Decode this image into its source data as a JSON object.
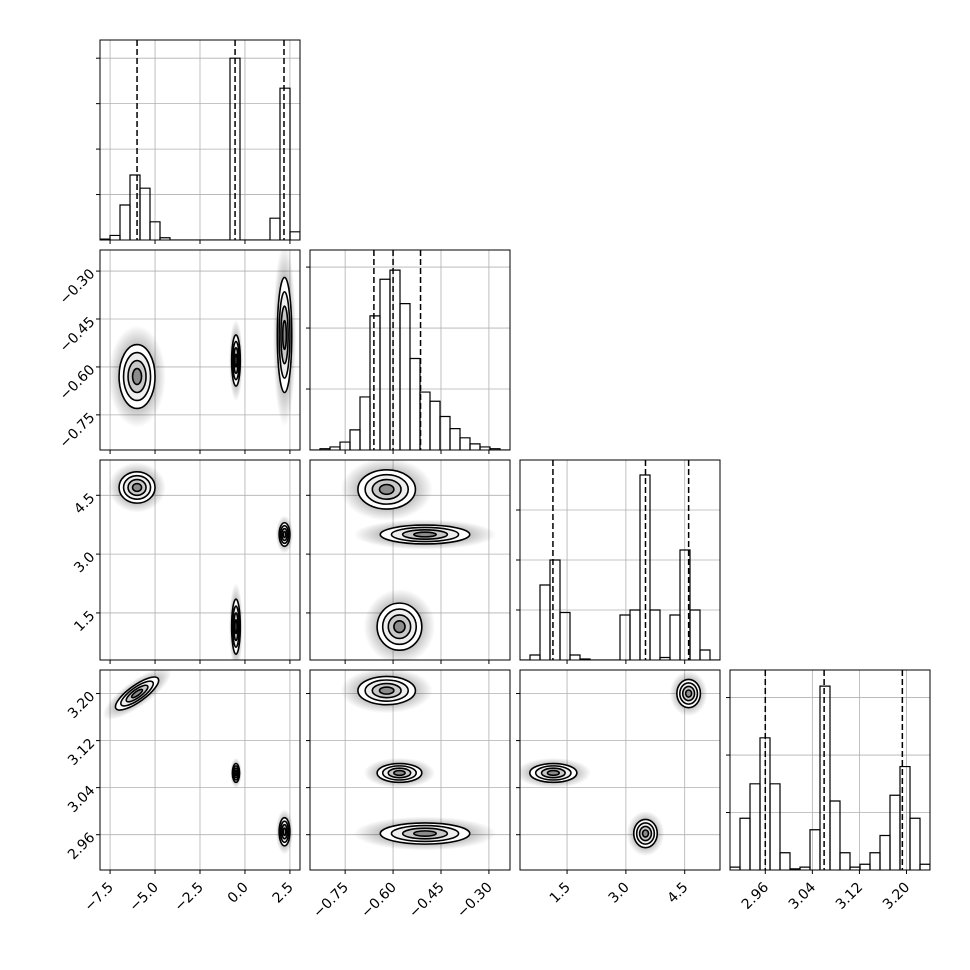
{
  "chart_data": {
    "type": "corner",
    "parameters": [
      {
        "lim": [
          -8.06,
          3.06
        ],
        "ticks": [
          {
            "value": -7.5,
            "label": "−7.5"
          },
          {
            "value": -5.0,
            "label": "−5.0"
          },
          {
            "value": -2.5,
            "label": "−2.5"
          },
          {
            "value": 0,
            "label": "0.0"
          },
          {
            "value": 2.5,
            "label": "2.5"
          }
        ],
        "quantiles": [
          -6.0,
          -0.55,
          2.17
        ],
        "bins": [
          -8.06,
          -7.504,
          -6.948,
          -6.392,
          -5.836,
          -5.28,
          -4.724,
          -4.168,
          -3.612,
          -3.056,
          -2.5,
          -1.944,
          -1.388,
          -0.832,
          -0.276,
          0.28,
          0.836,
          1.392,
          1.948,
          2.504,
          3.06
        ],
        "counts": [
          0.02,
          0.1,
          0.77,
          1.43,
          1.14,
          0.4,
          0.05,
          0,
          0,
          0,
          0,
          0,
          0,
          4.0,
          0,
          0,
          0,
          0.48,
          3.34,
          0.18
        ],
        "hist_ylim": [
          0,
          4.4
        ],
        "hist_yticks": [
          1,
          2,
          3,
          4
        ]
      },
      {
        "lim": [
          -0.86,
          -0.234
        ],
        "ticks": [
          {
            "value": -0.75,
            "label": "−0.75"
          },
          {
            "value": -0.6,
            "label": "−0.60"
          },
          {
            "value": -0.45,
            "label": "−0.45"
          },
          {
            "value": -0.3,
            "label": "−0.30"
          }
        ],
        "quantiles": [
          -0.66,
          -0.6,
          -0.514
        ],
        "bins": [
          -0.86,
          -0.8287,
          -0.7974,
          -0.7661,
          -0.7348,
          -0.7035,
          -0.6722,
          -0.6409,
          -0.6096,
          -0.5783,
          -0.547,
          -0.5157,
          -0.4844,
          -0.4531,
          -0.4218,
          -0.3905,
          -0.3592,
          -0.3279,
          -0.2966,
          -0.2653,
          -0.234
        ],
        "counts": [
          0,
          0.02,
          0.05,
          0.13,
          0.33,
          0.87,
          2.2,
          2.8,
          2.95,
          2.4,
          1.5,
          0.95,
          0.8,
          0.55,
          0.35,
          0.2,
          0.1,
          0.05,
          0.02,
          0
        ],
        "hist_ylim": [
          0,
          3.28
        ],
        "hist_yticks": [
          1,
          2,
          3
        ]
      },
      {
        "lim": [
          0.3,
          5.4
        ],
        "ticks": [
          1.5,
          {
            "value": 3.0,
            "label": "3.0"
          },
          4.5
        ],
        "quantiles": [
          1.14,
          3.5,
          4.6
        ],
        "bins": [
          0.3,
          0.555,
          0.81,
          1.065,
          1.32,
          1.575,
          1.83,
          2.085,
          2.34,
          2.595,
          2.85,
          3.105,
          3.36,
          3.615,
          3.87,
          4.125,
          4.38,
          4.635,
          4.89,
          5.145,
          5.4
        ],
        "counts": [
          0,
          0.1,
          1.5,
          2.0,
          0.95,
          0.1,
          0.02,
          0,
          0,
          0,
          0.9,
          1.0,
          3.7,
          1.0,
          0.05,
          0.9,
          2.2,
          1.0,
          0.2,
          0
        ],
        "hist_ylim": [
          0,
          4
        ],
        "hist_yticks": [
          1,
          2,
          3
        ]
      },
      {
        "lim": [
          2.9,
          3.24
        ],
        "ticks": [
          2.96,
          3.04,
          3.12,
          {
            "value": 3.2,
            "label": "3.20"
          }
        ],
        "quantiles": [
          2.96,
          3.06,
          3.193
        ],
        "bins": [
          2.9,
          2.917,
          2.934,
          2.951,
          2.968,
          2.985,
          3.002,
          3.019,
          3.036,
          3.053,
          3.07,
          3.087,
          3.104,
          3.121,
          3.138,
          3.155,
          3.172,
          3.189,
          3.206,
          3.223,
          3.24
        ],
        "counts": [
          0.05,
          0.9,
          1.5,
          2.3,
          1.5,
          0.3,
          0.02,
          0.05,
          0.7,
          3.2,
          1.2,
          0.3,
          0.05,
          0.1,
          0.3,
          0.6,
          1.3,
          1.8,
          0.9,
          0.1
        ],
        "hist_ylim": [
          0,
          3.48
        ],
        "hist_yticks": [
          1,
          2,
          3
        ]
      }
    ],
    "contour_levels": [
      2,
      1.5,
      1,
      0.5
    ],
    "panels": [
      {
        "x_param": 0,
        "y_param": 1,
        "clusters": [
          {
            "x": -6.0,
            "y": -0.63,
            "sx": 0.5,
            "sy": 0.05,
            "rho": 0
          },
          {
            "x": -0.5,
            "y": -0.58,
            "sx": 0.12,
            "sy": 0.04,
            "rho": 0
          },
          {
            "x": 2.2,
            "y": -0.5,
            "sx": 0.2,
            "sy": 0.09,
            "rho": 0
          }
        ]
      },
      {
        "x_param": 0,
        "y_param": 2,
        "clusters": [
          {
            "x": -6.0,
            "y": 4.7,
            "sx": 0.5,
            "sy": 0.2,
            "rho": 0
          },
          {
            "x": 2.2,
            "y": 3.5,
            "sx": 0.15,
            "sy": 0.15,
            "rho": 0
          },
          {
            "x": -0.5,
            "y": 1.15,
            "sx": 0.12,
            "sy": 0.35,
            "rho": 0
          }
        ]
      },
      {
        "x_param": 1,
        "y_param": 2,
        "clusters": [
          {
            "x": -0.62,
            "y": 4.65,
            "sx": 0.045,
            "sy": 0.25,
            "rho": 0
          },
          {
            "x": -0.5,
            "y": 3.5,
            "sx": 0.07,
            "sy": 0.12,
            "rho": 0
          },
          {
            "x": -0.58,
            "y": 1.15,
            "sx": 0.035,
            "sy": 0.3,
            "rho": 0
          }
        ]
      },
      {
        "x_param": 0,
        "y_param": 3,
        "clusters": [
          {
            "x": -6.0,
            "y": 3.2,
            "sx": 0.6,
            "sy": 0.014,
            "rho": 0.8
          },
          {
            "x": -0.5,
            "y": 3.065,
            "sx": 0.1,
            "sy": 0.008,
            "rho": 0
          },
          {
            "x": 2.2,
            "y": 2.965,
            "sx": 0.15,
            "sy": 0.012,
            "rho": 0
          }
        ]
      },
      {
        "x_param": 1,
        "y_param": 3,
        "clusters": [
          {
            "x": -0.62,
            "y": 3.205,
            "sx": 0.045,
            "sy": 0.012,
            "rho": 0
          },
          {
            "x": -0.58,
            "y": 3.065,
            "sx": 0.035,
            "sy": 0.008,
            "rho": 0
          },
          {
            "x": -0.5,
            "y": 2.962,
            "sx": 0.07,
            "sy": 0.009,
            "rho": 0
          }
        ]
      },
      {
        "x_param": 2,
        "y_param": 3,
        "clusters": [
          {
            "x": 4.6,
            "y": 3.2,
            "sx": 0.15,
            "sy": 0.012,
            "rho": 0
          },
          {
            "x": 1.15,
            "y": 3.065,
            "sx": 0.3,
            "sy": 0.008,
            "rho": 0
          },
          {
            "x": 3.5,
            "y": 2.962,
            "sx": 0.15,
            "sy": 0.012,
            "rho": 0
          }
        ]
      }
    ]
  }
}
